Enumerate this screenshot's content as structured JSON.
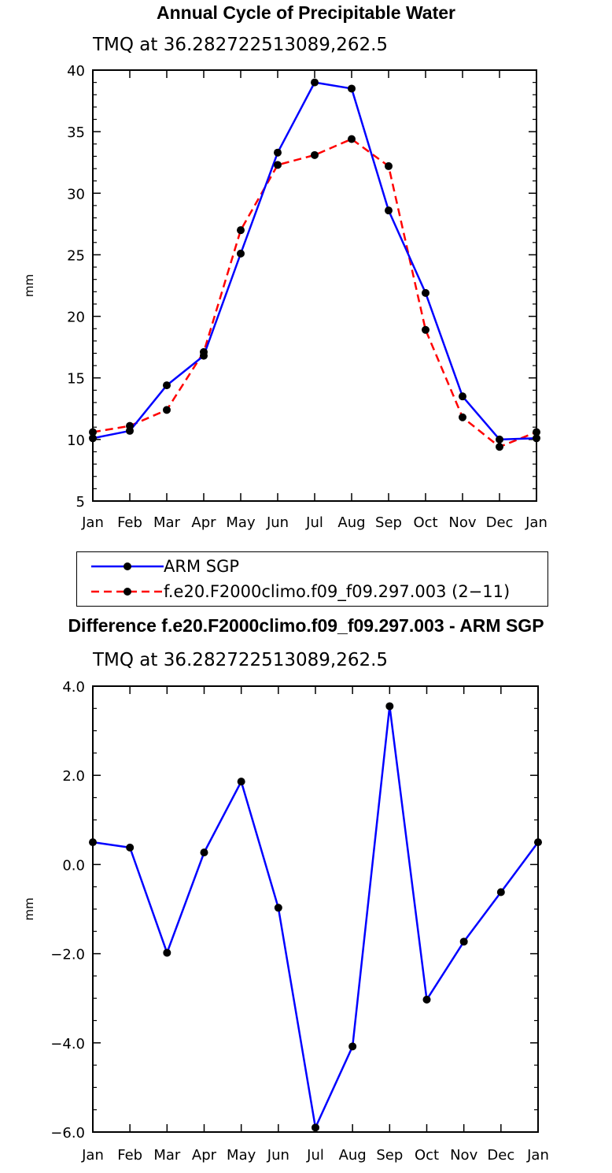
{
  "chart_data": [
    {
      "type": "line",
      "title": "Annual Cycle of Precipitable Water",
      "subtitle": "TMQ  at  36.282722513089,262.5",
      "xlabel": "",
      "ylabel": "mm",
      "categories": [
        "Jan",
        "Feb",
        "Mar",
        "Apr",
        "May",
        "Jun",
        "Jul",
        "Aug",
        "Sep",
        "Oct",
        "Nov",
        "Dec",
        "Jan"
      ],
      "ylim": [
        5,
        40
      ],
      "yticks": [
        5,
        10,
        15,
        20,
        25,
        30,
        35,
        40
      ],
      "ytick_labels": [
        "5",
        "10",
        "15",
        "20",
        "25",
        "30",
        "35",
        "40"
      ],
      "series": [
        {
          "name": "ARM  SGP",
          "color": "#0000ff",
          "dash": "solid",
          "values": [
            10.1,
            10.7,
            14.4,
            16.8,
            25.1,
            33.3,
            39.0,
            38.5,
            28.6,
            21.9,
            13.5,
            10.0,
            10.1
          ]
        },
        {
          "name": "f.e20.F2000climo.f09_f09.297.003  (2−11)",
          "color": "#ff0000",
          "dash": "dashed",
          "values": [
            10.6,
            11.1,
            12.4,
            17.1,
            27.0,
            32.3,
            33.1,
            34.4,
            32.2,
            18.9,
            11.8,
            9.4,
            10.6
          ]
        }
      ],
      "legend": "below"
    },
    {
      "type": "line",
      "title": "Difference f.e20.F2000climo.f09_f09.297.003 - ARM SGP",
      "subtitle": "TMQ  at  36.282722513089,262.5",
      "xlabel": "",
      "ylabel": "mm",
      "categories": [
        "Jan",
        "Feb",
        "Mar",
        "Apr",
        "May",
        "Jun",
        "Jul",
        "Aug",
        "Sep",
        "Oct",
        "Nov",
        "Dec",
        "Jan"
      ],
      "ylim": [
        -6,
        4
      ],
      "yticks": [
        -6,
        -4,
        -2,
        0,
        2,
        4
      ],
      "ytick_labels": [
        "−6.0",
        "−4.0",
        "−2.0",
        "0.0",
        "2.0",
        "4.0"
      ],
      "series": [
        {
          "name": "Difference",
          "color": "#0000ff",
          "dash": "solid",
          "values": [
            0.5,
            0.38,
            -1.98,
            0.27,
            1.86,
            -0.97,
            -5.9,
            -4.08,
            3.55,
            -3.03,
            -1.73,
            -0.62,
            0.5
          ]
        }
      ]
    }
  ]
}
